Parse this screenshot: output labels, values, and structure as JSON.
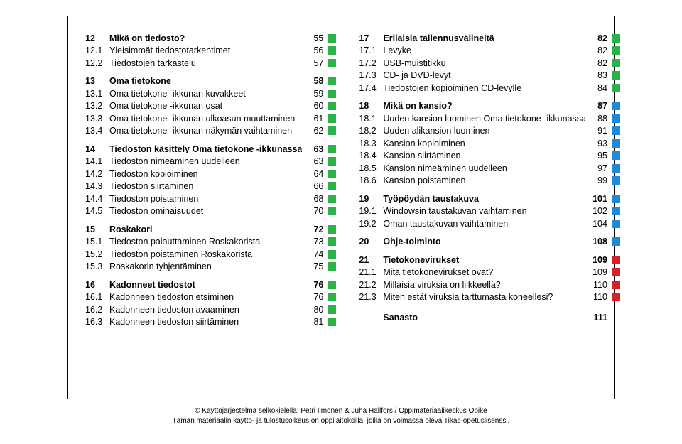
{
  "colors": {
    "green": "#2db24a",
    "blue": "#1f8ad6",
    "red": "#d6202a",
    "black": "#000000",
    "white": "#ffffff"
  },
  "left": [
    {
      "num": "12",
      "title": "Mikä on tiedosto?",
      "page": "55",
      "color": "green",
      "heading": true
    },
    {
      "num": "12.1",
      "title": "Yleisimmät tiedostotarkentimet",
      "page": "56",
      "color": "green"
    },
    {
      "num": "12.2",
      "title": "Tiedostojen tarkastelu",
      "page": "57",
      "color": "green"
    },
    {
      "num": "13",
      "title": "Oma tietokone",
      "page": "58",
      "color": "green",
      "heading": true,
      "gap": true
    },
    {
      "num": "13.1",
      "title": "Oma tietokone -ikkunan kuvakkeet",
      "page": "59",
      "color": "green"
    },
    {
      "num": "13.2",
      "title": "Oma tietokone -ikkunan osat",
      "page": "60",
      "color": "green"
    },
    {
      "num": "13.3",
      "title": "Oma tietokone -ikkunan ulkoasun muuttaminen",
      "page": "61",
      "color": "green"
    },
    {
      "num": "13.4",
      "title": "Oma tietokone -ikkunan näkymän vaihtaminen",
      "page": "62",
      "color": "green"
    },
    {
      "num": "14",
      "title": "Tiedoston käsittely Oma tietokone -ikkunassa",
      "page": "63",
      "color": "green",
      "heading": true,
      "gap": true
    },
    {
      "num": "14.1",
      "title": "Tiedoston nimeäminen uudelleen",
      "page": "63",
      "color": "green"
    },
    {
      "num": "14.2",
      "title": "Tiedoston kopioiminen",
      "page": "64",
      "color": "green"
    },
    {
      "num": "14.3",
      "title": "Tiedoston siirtäminen",
      "page": "66",
      "color": "green"
    },
    {
      "num": "14.4",
      "title": "Tiedoston poistaminen",
      "page": "68",
      "color": "green"
    },
    {
      "num": "14.5",
      "title": "Tiedoston ominaisuudet",
      "page": "70",
      "color": "green"
    },
    {
      "num": "15",
      "title": "Roskakori",
      "page": "72",
      "color": "green",
      "heading": true,
      "gap": true
    },
    {
      "num": "15.1",
      "title": "Tiedoston palauttaminen Roskakorista",
      "page": "73",
      "color": "green"
    },
    {
      "num": "15.2",
      "title": "Tiedoston poistaminen Roskakorista",
      "page": "74",
      "color": "green"
    },
    {
      "num": "15.3",
      "title": "Roskakorin tyhjentäminen",
      "page": "75",
      "color": "green"
    },
    {
      "num": "16",
      "title": "Kadonneet tiedostot",
      "page": "76",
      "color": "green",
      "heading": true,
      "gap": true
    },
    {
      "num": "16.1",
      "title": "Kadonneen tiedoston etsiminen",
      "page": "76",
      "color": "green"
    },
    {
      "num": "16.2",
      "title": "Kadonneen tiedoston avaaminen",
      "page": "80",
      "color": "green"
    },
    {
      "num": "16.3",
      "title": "Kadonneen tiedoston siirtäminen",
      "page": "81",
      "color": "green"
    }
  ],
  "right": [
    {
      "num": "17",
      "title": "Erilaisia tallennusvälineitä",
      "page": "82",
      "color": "green",
      "heading": true
    },
    {
      "num": "17.1",
      "title": "Levyke",
      "page": "82",
      "color": "green"
    },
    {
      "num": "17.2",
      "title": "USB-muistitikku",
      "page": "82",
      "color": "green"
    },
    {
      "num": "17.3",
      "title": "CD- ja DVD-levyt",
      "page": "83",
      "color": "green"
    },
    {
      "num": "17.4",
      "title": "Tiedostojen kopioiminen CD-levylle",
      "page": "84",
      "color": "green"
    },
    {
      "num": "18",
      "title": "Mikä on kansio?",
      "page": "87",
      "color": "blue",
      "heading": true,
      "gap": true
    },
    {
      "num": "18.1",
      "title": "Uuden kansion luominen Oma tietokone -ikkunassa",
      "page": "88",
      "color": "blue"
    },
    {
      "num": "18.2",
      "title": "Uuden alikansion luominen",
      "page": "91",
      "color": "blue"
    },
    {
      "num": "18.3",
      "title": "Kansion kopioiminen",
      "page": "93",
      "color": "blue"
    },
    {
      "num": "18.4",
      "title": "Kansion siirtäminen",
      "page": "95",
      "color": "blue"
    },
    {
      "num": "18.5",
      "title": "Kansion nimeäminen uudelleen",
      "page": "97",
      "color": "blue"
    },
    {
      "num": "18.6",
      "title": "Kansion poistaminen",
      "page": "99",
      "color": "blue"
    },
    {
      "num": "19",
      "title": "Työpöydän taustakuva",
      "page": "101",
      "color": "blue",
      "heading": true,
      "gap": true
    },
    {
      "num": "19.1",
      "title": "Windowsin taustakuvan vaihtaminen",
      "page": "102",
      "color": "blue"
    },
    {
      "num": "19.2",
      "title": "Oman taustakuvan vaihtaminen",
      "page": "104",
      "color": "blue"
    },
    {
      "num": "20",
      "title": "Ohje-toiminto",
      "page": "108",
      "color": "blue",
      "heading": true,
      "gap": true
    },
    {
      "num": "21",
      "title": "Tietokonevirukset",
      "page": "109",
      "color": "red",
      "heading": true,
      "gap": true
    },
    {
      "num": "21.1",
      "title": "Mitä tietokonevirukset ovat?",
      "page": "109",
      "color": "red"
    },
    {
      "num": "21.2",
      "title": "Millaisia viruksia on liikkeellä?",
      "page": "110",
      "color": "red"
    },
    {
      "num": "21.3",
      "title": "Miten estät viruksia tarttumasta koneellesi?",
      "page": "110",
      "color": "red"
    },
    {
      "divider": true
    },
    {
      "num": "",
      "title": "Sanasto",
      "page": "111",
      "color": "",
      "heading": true
    }
  ],
  "footer": {
    "line1": "© Käyttöjärjestelmä selkokielellä: Petri Ilmonen & Juha Hällfors / Oppimateriaalikeskus Opike",
    "line2": "Tämän materiaalin käyttö- ja tulostusoikeus on oppilaitoksilla, joilla on voimassa oleva Tikas-opetuslisenssi."
  }
}
